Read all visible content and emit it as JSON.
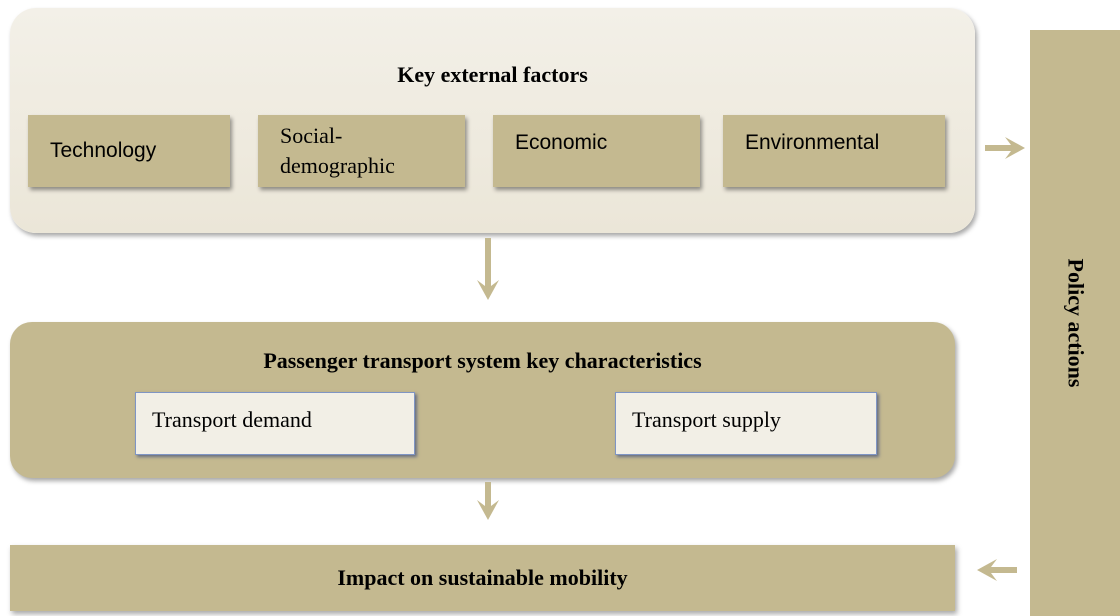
{
  "top_box": {
    "title": "Key external factors",
    "factors": [
      "Technology",
      "Social-demographic",
      "Economic",
      "Environmental"
    ]
  },
  "middle_box": {
    "title": "Passenger transport system key characteristics",
    "items": [
      "Transport demand",
      "Transport supply"
    ]
  },
  "bottom_box": {
    "title": "Impact on sustainable mobility"
  },
  "side_box": {
    "title": "Policy actions"
  }
}
